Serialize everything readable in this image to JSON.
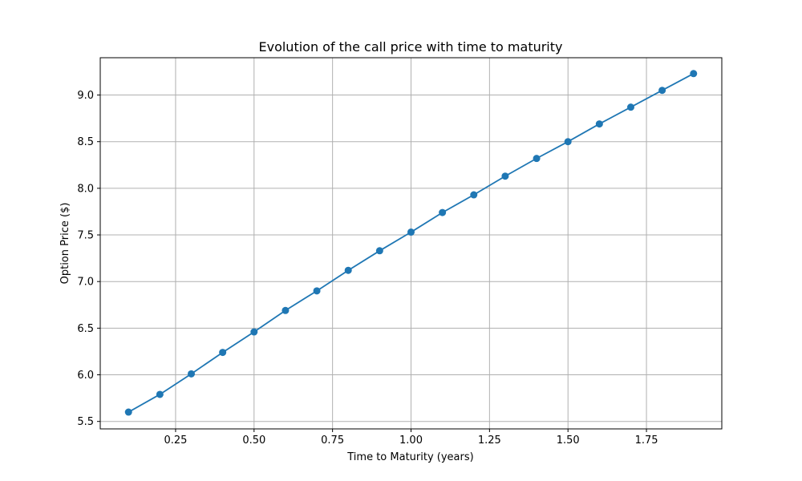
{
  "chart_data": {
    "type": "line",
    "title": "Evolution of the call price with time to maturity",
    "xlabel": "Time to Maturity (years)",
    "ylabel": "Option Price ($)",
    "xlim": [
      0.01,
      1.99
    ],
    "ylim": [
      5.42,
      9.4
    ],
    "x_ticks": [
      0.25,
      0.5,
      0.75,
      1.0,
      1.25,
      1.5,
      1.75
    ],
    "x_tick_labels": [
      "0.25",
      "0.50",
      "0.75",
      "1.00",
      "1.25",
      "1.50",
      "1.75"
    ],
    "y_ticks": [
      5.5,
      6.0,
      6.5,
      7.0,
      7.5,
      8.0,
      8.5,
      9.0
    ],
    "y_tick_labels": [
      "5.5",
      "6.0",
      "6.5",
      "7.0",
      "7.5",
      "8.0",
      "8.5",
      "9.0"
    ],
    "grid": true,
    "series": [
      {
        "color": "#1f77b4",
        "marker": "circle",
        "x": [
          0.1,
          0.2,
          0.3,
          0.4,
          0.5,
          0.6,
          0.7,
          0.8,
          0.9,
          1.0,
          1.1,
          1.2,
          1.3,
          1.4,
          1.5,
          1.6,
          1.7,
          1.8,
          1.9
        ],
        "y": [
          5.6,
          5.79,
          6.01,
          6.24,
          6.46,
          6.69,
          6.9,
          7.12,
          7.33,
          7.53,
          7.74,
          7.93,
          8.13,
          8.32,
          8.5,
          8.69,
          8.87,
          9.05,
          9.23
        ]
      }
    ]
  }
}
